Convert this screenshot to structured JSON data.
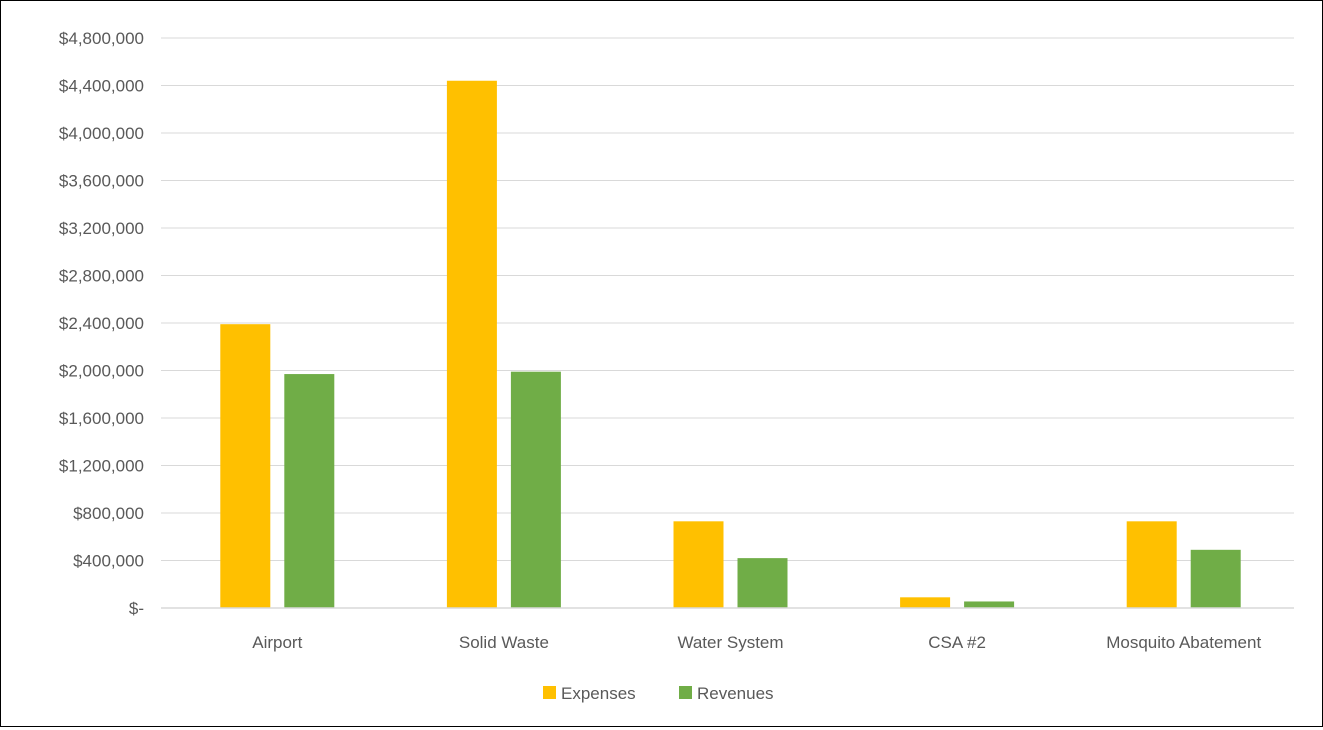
{
  "chart_data": {
    "type": "bar",
    "categories": [
      "Airport",
      "Solid Waste",
      "Water System",
      "CSA #2",
      "Mosquito Abatement"
    ],
    "series": [
      {
        "name": "Expenses",
        "color": "#FFC000",
        "values": [
          2390000,
          4440000,
          730000,
          90000,
          730000
        ]
      },
      {
        "name": "Revenues",
        "color": "#70AD47",
        "values": [
          1970000,
          1990000,
          420000,
          55000,
          490000
        ]
      }
    ],
    "ylim": [
      0,
      4800000
    ],
    "yticks": [
      0,
      400000,
      800000,
      1200000,
      1600000,
      2000000,
      2400000,
      2800000,
      3200000,
      3600000,
      4000000,
      4400000,
      4800000
    ],
    "ytick_labels": [
      "$-",
      "$400,000",
      "$800,000",
      "$1,200,000",
      "$1,600,000",
      "$2,000,000",
      "$2,400,000",
      "$2,800,000",
      "$3,200,000",
      "$3,600,000",
      "$4,000,000",
      "$4,400,000",
      "$4,800,000"
    ],
    "grid": true,
    "gridline_color": "#D9D9D9",
    "legend_position": "bottom"
  }
}
